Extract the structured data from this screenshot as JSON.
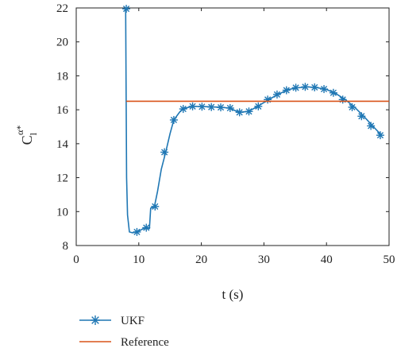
{
  "chart_data": {
    "type": "line",
    "ylabel": {
      "base": "C",
      "sub": "l",
      "sup": "α*"
    },
    "xlabel": "t (s)",
    "xlim": [
      0,
      50
    ],
    "ylim": [
      8,
      22
    ],
    "xticks": [
      "0",
      "10",
      "20",
      "30",
      "40",
      "50"
    ],
    "yticks": [
      "8",
      "10",
      "12",
      "14",
      "16",
      "18",
      "20",
      "22"
    ],
    "grid": false,
    "legend_position": "bottom-left",
    "series": [
      {
        "name": "UKF",
        "color": "#1f77b4",
        "marker": "asterisk",
        "line": [
          [
            7.9,
            22.0
          ],
          [
            8.05,
            12.0
          ],
          [
            8.2,
            9.8
          ],
          [
            8.5,
            8.8
          ],
          [
            9.0,
            8.75
          ],
          [
            10.0,
            8.85
          ],
          [
            11.0,
            9.05
          ],
          [
            11.7,
            9.0
          ],
          [
            11.9,
            10.2
          ],
          [
            12.5,
            10.3
          ],
          [
            13.0,
            11.2
          ],
          [
            13.6,
            12.5
          ],
          [
            14.3,
            13.5
          ],
          [
            15.0,
            14.6
          ],
          [
            15.6,
            15.4
          ],
          [
            16.5,
            15.85
          ],
          [
            17.0,
            16.05
          ],
          [
            18.0,
            16.15
          ],
          [
            19.0,
            16.2
          ],
          [
            21.0,
            16.18
          ],
          [
            23.0,
            16.15
          ],
          [
            24.5,
            16.1
          ],
          [
            26.0,
            15.85
          ],
          [
            27.5,
            15.9
          ],
          [
            29.0,
            16.2
          ],
          [
            31.0,
            16.65
          ],
          [
            32.5,
            16.95
          ],
          [
            34.0,
            17.2
          ],
          [
            35.5,
            17.3
          ],
          [
            37.0,
            17.35
          ],
          [
            38.5,
            17.3
          ],
          [
            40.0,
            17.2
          ],
          [
            41.5,
            16.95
          ],
          [
            43.0,
            16.6
          ],
          [
            44.5,
            16.15
          ],
          [
            46.0,
            15.6
          ],
          [
            47.5,
            15.0
          ],
          [
            48.8,
            14.5
          ]
        ],
        "markers": [
          [
            8.0,
            21.95
          ],
          [
            9.7,
            8.8
          ],
          [
            11.2,
            9.05
          ],
          [
            12.6,
            10.3
          ],
          [
            14.1,
            13.5
          ],
          [
            15.6,
            15.4
          ],
          [
            17.1,
            16.05
          ],
          [
            18.6,
            16.2
          ],
          [
            20.1,
            16.18
          ],
          [
            21.6,
            16.16
          ],
          [
            23.1,
            16.14
          ],
          [
            24.6,
            16.1
          ],
          [
            26.1,
            15.85
          ],
          [
            27.6,
            15.9
          ],
          [
            29.1,
            16.2
          ],
          [
            30.6,
            16.6
          ],
          [
            32.1,
            16.9
          ],
          [
            33.6,
            17.15
          ],
          [
            35.1,
            17.3
          ],
          [
            36.6,
            17.35
          ],
          [
            38.1,
            17.32
          ],
          [
            39.6,
            17.22
          ],
          [
            41.1,
            17.0
          ],
          [
            42.6,
            16.6
          ],
          [
            44.1,
            16.15
          ],
          [
            45.6,
            15.62
          ],
          [
            47.1,
            15.05
          ],
          [
            48.6,
            14.5
          ]
        ]
      },
      {
        "name": "Reference",
        "color": "#d95319",
        "marker": "none",
        "line": [
          [
            8.0,
            16.5
          ],
          [
            50.0,
            16.5
          ]
        ]
      }
    ]
  }
}
